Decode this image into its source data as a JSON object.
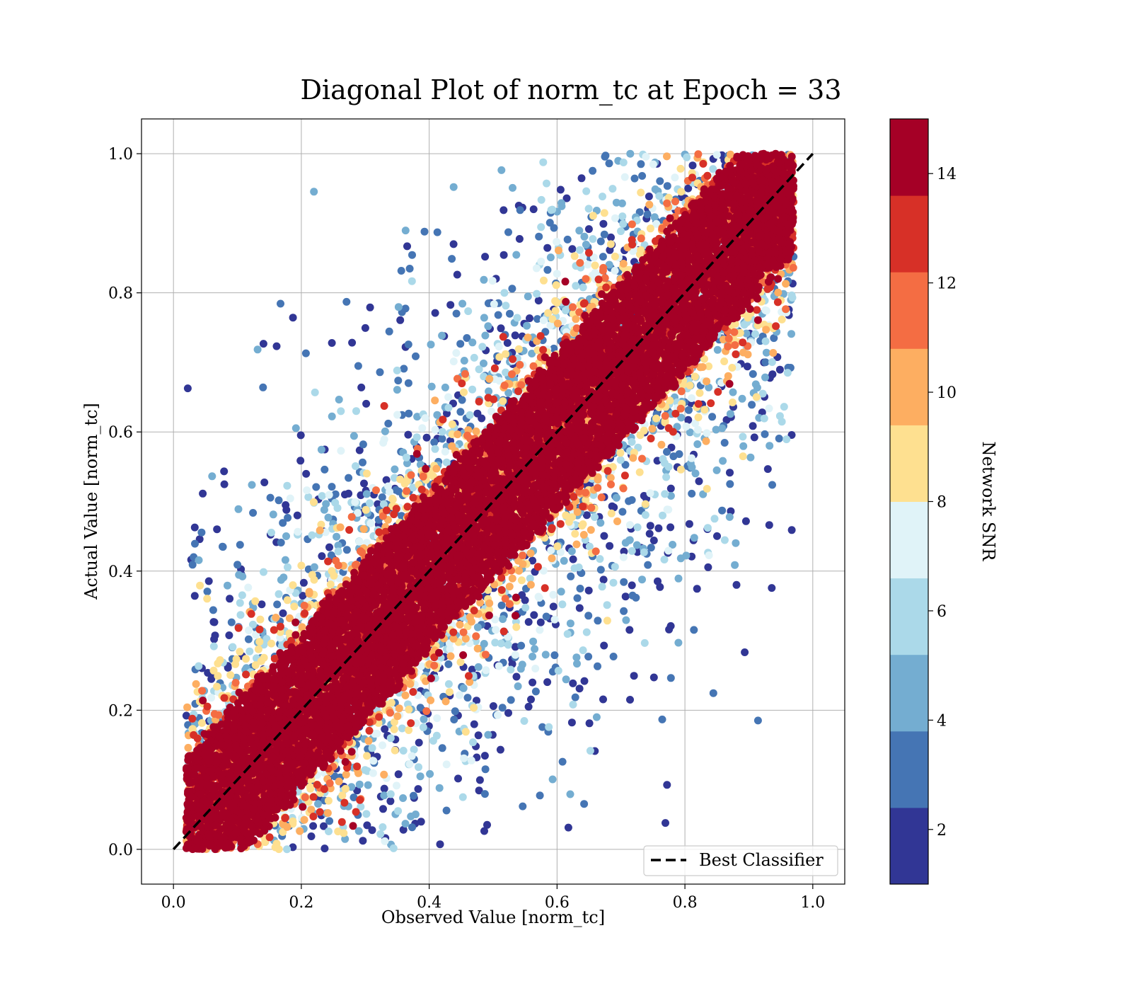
{
  "chart_data": {
    "type": "scatter",
    "title": "Diagonal Plot of norm_tc at Epoch = 33",
    "xlabel": "Observed Value [norm_tc]",
    "ylabel": "Actual Value [norm_tc]",
    "xlim": [
      -0.05,
      1.05
    ],
    "ylim": [
      -0.05,
      1.05
    ],
    "xticks": [
      0.0,
      0.2,
      0.4,
      0.6,
      0.8,
      1.0
    ],
    "yticks": [
      0.0,
      0.2,
      0.4,
      0.6,
      0.8,
      1.0
    ],
    "xtick_labels": [
      "0.0",
      "0.2",
      "0.4",
      "0.6",
      "0.8",
      "1.0"
    ],
    "ytick_labels": [
      "0.0",
      "0.2",
      "0.4",
      "0.6",
      "0.8",
      "1.0"
    ],
    "grid": true,
    "point_cloud": {
      "description_of_trend": "dense band around y = x, high SNR near diagonal, lower SNR spreading away",
      "observed_range": [
        0.02,
        0.97
      ],
      "actual_range": [
        0.0,
        1.0
      ],
      "band_width_high_snr": 0.12,
      "scatter_width_low_snr": 0.45
    },
    "reference_line": {
      "name": "Best Classifier",
      "x": [
        0.0,
        1.0
      ],
      "y": [
        0.0,
        1.0
      ],
      "style": "dashed",
      "color": "#000000"
    },
    "legend": {
      "placement": "lower-right",
      "entries": [
        "Best Classifier"
      ]
    },
    "colorbar": {
      "label": "Network SNR",
      "min": 1,
      "max": 15,
      "ticks": [
        2,
        4,
        6,
        8,
        10,
        12,
        14
      ],
      "tick_labels": [
        "2",
        "4",
        "6",
        "8",
        "10",
        "12",
        "14"
      ],
      "colors": [
        "#313695",
        "#4575b4",
        "#74add1",
        "#abd9e9",
        "#e0f3f8",
        "#fee090",
        "#fdae61",
        "#f46d43",
        "#d73027",
        "#a50026"
      ]
    }
  }
}
